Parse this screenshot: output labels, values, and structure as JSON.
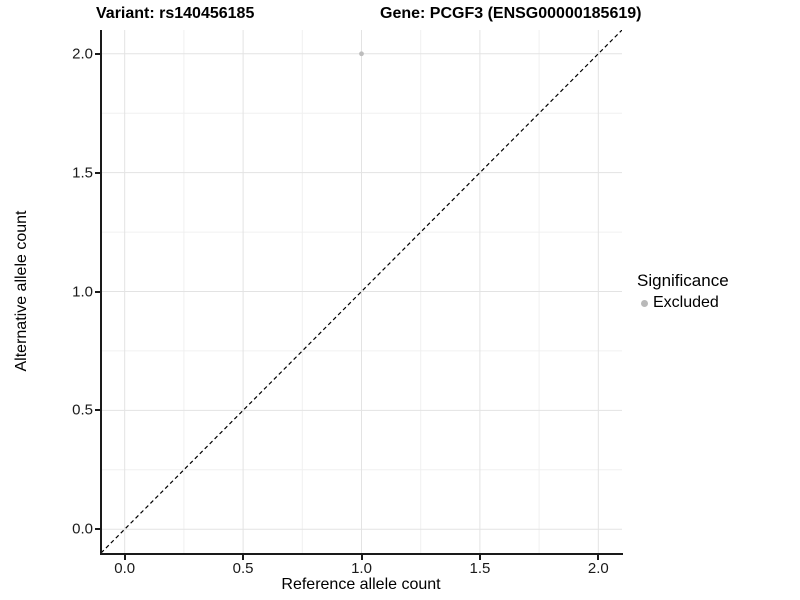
{
  "chart_data": {
    "type": "scatter",
    "title_left": "Variant: rs140456185",
    "title_right": "Gene: PCGF3 (ENSG00000185619)",
    "xlabel": "Reference allele count",
    "ylabel": "Alternative allele count",
    "xlim": [
      -0.1,
      2.1
    ],
    "ylim": [
      -0.1,
      2.1
    ],
    "x_ticks": [
      0.0,
      0.5,
      1.0,
      1.5,
      2.0
    ],
    "y_ticks": [
      0.0,
      0.5,
      1.0,
      1.5,
      2.0
    ],
    "x_tick_labels": [
      "0.0",
      "0.5",
      "1.0",
      "1.5",
      "2.0"
    ],
    "y_tick_labels": [
      "0.0",
      "0.5",
      "1.0",
      "1.5",
      "2.0"
    ],
    "x_minor_ticks": [
      0.25,
      0.75,
      1.25,
      1.75
    ],
    "y_minor_ticks": [
      0.25,
      0.75,
      1.25,
      1.75
    ],
    "grid": "major+minor",
    "legend_position": "right",
    "points": [
      {
        "x": 1.0,
        "y": 2.0,
        "series": "Excluded"
      }
    ],
    "identity_line": {
      "style": "dashed",
      "from": [
        -0.1,
        -0.1
      ],
      "to": [
        2.1,
        2.1
      ]
    },
    "legend": {
      "title": "Significance",
      "entries": [
        {
          "label": "Excluded",
          "color": "#b9b9b9"
        }
      ]
    },
    "colors": {
      "point": "#bdbdbd",
      "grid_major": "#e3e3e3",
      "grid_minor": "#f0f0f0",
      "axis": "#1a1a1a",
      "identity_line": "#000000",
      "background": "#ffffff"
    }
  }
}
